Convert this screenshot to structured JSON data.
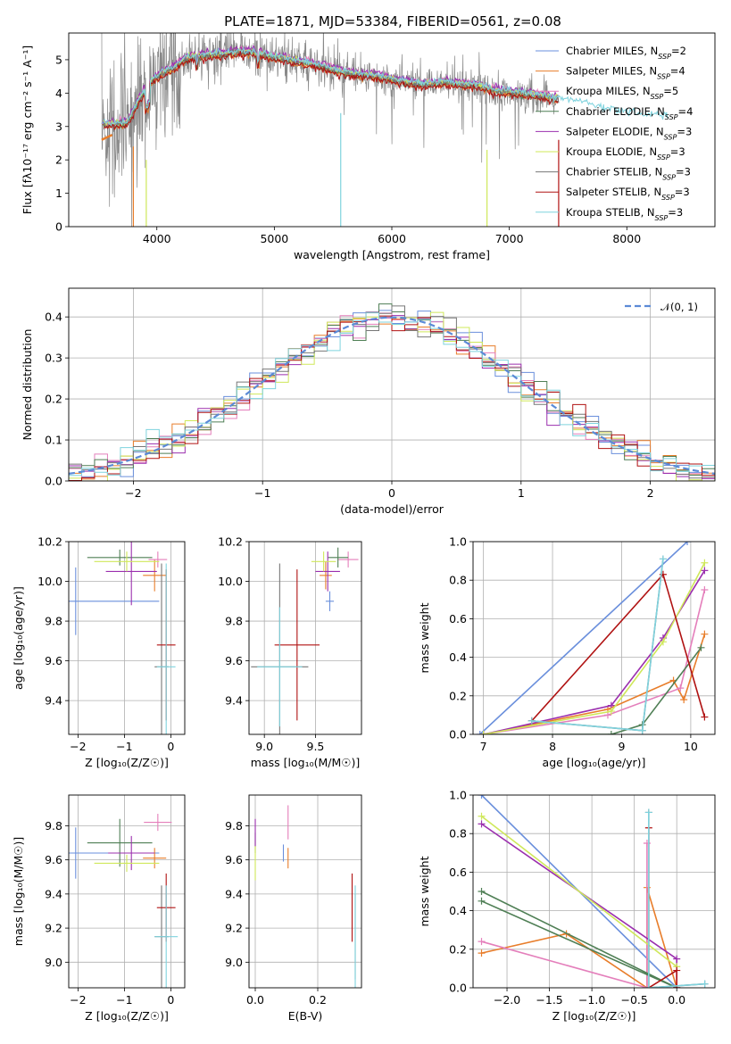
{
  "title": "PLATE=1871, MJD=53384, FIBERID=0561, z=0.08",
  "colors": {
    "chabrier_miles": "#6a8fdc",
    "salpeter_miles": "#e87d2a",
    "kroupa_miles": "#e47fbb",
    "chabrier_elodie": "#4f7f55",
    "salpeter_elodie": "#9b2fae",
    "kroupa_elodie": "#cfe85a",
    "chabrier_stelib": "#777777",
    "salpeter_stelib": "#b01212",
    "kroupa_stelib": "#7fd3de",
    "data": "#888888",
    "grid": "#b0b0b0",
    "gaussian": "#5b8ad6"
  },
  "chart_data": [
    {
      "type": "line",
      "id": "spectrum",
      "title": "PLATE=1871, MJD=53384, FIBERID=0561, z=0.08",
      "xlabel": "wavelength [Angstrom, rest frame]",
      "ylabel": "Flux [fλ10⁻¹⁷ erg cm⁻² s⁻¹ A⁻¹]",
      "xlim": [
        3250,
        8750
      ],
      "ylim": [
        0,
        5.8
      ],
      "xticks": [
        4000,
        5000,
        6000,
        7000,
        8000
      ],
      "yticks": [
        0,
        1,
        2,
        3,
        4,
        5
      ],
      "grid": false,
      "legend_loc": "right",
      "series": [
        {
          "name": "Chabrier MILES, N",
          "sub": "SSP",
          "suffix": "=2"
        },
        {
          "name": "Salpeter MILES, N",
          "sub": "SSP",
          "suffix": "=4"
        },
        {
          "name": "Kroupa MILES, N",
          "sub": "SSP",
          "suffix": "=5"
        },
        {
          "name": "Chabrier ELODIE, N",
          "sub": "SSP",
          "suffix": "=4"
        },
        {
          "name": "Salpeter ELODIE, N",
          "sub": "SSP",
          "suffix": "=3"
        },
        {
          "name": "Kroupa ELODIE, N",
          "sub": "SSP",
          "suffix": "=3"
        },
        {
          "name": "Chabrier STELIB, N",
          "sub": "SSP",
          "suffix": "=3"
        },
        {
          "name": "Salpeter STELIB, N",
          "sub": "SSP",
          "suffix": "=3"
        },
        {
          "name": "Kroupa STELIB, N",
          "sub": "SSP",
          "suffix": "=3"
        }
      ],
      "continuum": {
        "wavelength": [
          3550,
          3650,
          3750,
          3850,
          3950,
          4050,
          4150,
          4250,
          4350,
          4500,
          4650,
          4800,
          4950,
          5100,
          5250,
          5400,
          5550,
          5700,
          5850,
          6000,
          6150,
          6300,
          6450,
          6600,
          6750,
          6900,
          7050,
          7200,
          7350,
          7500,
          7650,
          7800,
          7950,
          8100,
          8250,
          8350
        ],
        "flux": [
          3.05,
          3.05,
          3.1,
          3.8,
          4.35,
          4.6,
          4.75,
          5.05,
          5.1,
          5.15,
          5.2,
          5.22,
          5.1,
          5.0,
          4.9,
          4.8,
          4.65,
          4.55,
          4.5,
          4.4,
          4.3,
          4.25,
          4.3,
          4.25,
          4.2,
          4.05,
          4.0,
          3.95,
          3.85,
          3.75,
          3.7,
          3.5,
          3.4,
          3.35,
          3.3,
          3.25
        ]
      }
    },
    {
      "type": "bar",
      "id": "residual-histogram",
      "xlabel": "(data-model)/error",
      "ylabel": "Normed distribution",
      "xlim": [
        -2.5,
        2.5
      ],
      "ylim": [
        0,
        0.47
      ],
      "xticks": [
        -2,
        -1,
        0,
        1,
        2
      ],
      "yticks": [
        0.0,
        0.1,
        0.2,
        0.3,
        0.4
      ],
      "grid": true,
      "legend_loc": "upper right",
      "gaussian_label": "𝒩(0, 1)",
      "bin_width": 0.1
    },
    {
      "type": "scatter",
      "id": "age-vs-Z",
      "xlabel": "Z [log₁₀(Z/Z☉)]",
      "ylabel": "age  [log₁₀(age/yr)]",
      "xlim": [
        -2.2,
        0.3
      ],
      "ylim": [
        9.23,
        10.2
      ],
      "xticks": [
        -2,
        -1,
        0
      ],
      "yticks": [
        9.4,
        9.6,
        9.8,
        10.0,
        10.2
      ],
      "grid": true,
      "points": [
        {
          "series": 0,
          "x": -2.05,
          "xerr": 1.8,
          "y": 9.9,
          "yerr": 0.17
        },
        {
          "series": 1,
          "x": -0.35,
          "xerr": 0.25,
          "y": 10.03,
          "yerr": 0.08
        },
        {
          "series": 2,
          "x": -0.28,
          "xerr": 0.2,
          "y": 10.11,
          "yerr": 0.04
        },
        {
          "series": 3,
          "x": -1.1,
          "xerr": 0.7,
          "y": 10.12,
          "yerr": 0.04
        },
        {
          "series": 4,
          "x": -0.85,
          "xerr": 0.55,
          "y": 10.05,
          "yerr": 0.17
        },
        {
          "series": 5,
          "x": -0.95,
          "xerr": 0.7,
          "y": 10.1,
          "yerr": 0.05
        },
        {
          "series": 6,
          "x": -0.2,
          "xerr": 0.15,
          "y": 9.57,
          "yerr": 0.52
        },
        {
          "series": 7,
          "x": -0.1,
          "xerr": 0.2,
          "y": 9.68,
          "yerr": 0.38
        },
        {
          "series": 8,
          "x": -0.1,
          "xerr": 0.2,
          "y": 9.57,
          "yerr": 0.52
        }
      ]
    },
    {
      "type": "scatter",
      "id": "age-vs-mass",
      "xlabel": "mass [log₁₀(M/M☉)]",
      "ylabel": "",
      "xlim": [
        8.85,
        9.95
      ],
      "ylim": [
        9.23,
        10.2
      ],
      "xticks": [
        9.0,
        9.5
      ],
      "yticks": [
        9.4,
        9.6,
        9.8,
        10.0,
        10.2
      ],
      "grid": true,
      "points": [
        {
          "series": 0,
          "x": 9.64,
          "xerr": 0.04,
          "y": 9.9,
          "yerr": 0.05
        },
        {
          "series": 1,
          "x": 9.6,
          "xerr": 0.06,
          "y": 10.03,
          "yerr": 0.07
        },
        {
          "series": 2,
          "x": 9.82,
          "xerr": 0.1,
          "y": 10.11,
          "yerr": 0.04
        },
        {
          "series": 3,
          "x": 9.72,
          "xerr": 0.1,
          "y": 10.12,
          "yerr": 0.05
        },
        {
          "series": 4,
          "x": 9.62,
          "xerr": 0.12,
          "y": 10.05,
          "yerr": 0.1
        },
        {
          "series": 5,
          "x": 9.58,
          "xerr": 0.12,
          "y": 10.1,
          "yerr": 0.05
        },
        {
          "series": 6,
          "x": 9.15,
          "xerr": 0.28,
          "y": 9.57,
          "yerr": 0.52
        },
        {
          "series": 7,
          "x": 9.32,
          "xerr": 0.22,
          "y": 9.68,
          "yerr": 0.38
        },
        {
          "series": 8,
          "x": 9.15,
          "xerr": 0.22,
          "y": 9.57,
          "yerr": 0.3
        }
      ]
    },
    {
      "type": "line",
      "id": "weight-vs-age",
      "xlabel": "age  [log₁₀(age/yr)]",
      "ylabel": "mass weight",
      "xlim": [
        6.85,
        10.35
      ],
      "ylim": [
        0,
        1
      ],
      "xticks": [
        7,
        8,
        9,
        10
      ],
      "yticks": [
        0.0,
        0.2,
        0.4,
        0.6,
        0.8,
        1.0
      ],
      "grid": true,
      "series": [
        {
          "series": 0,
          "x": [
            6.95,
            9.95
          ],
          "y": [
            0.0,
            1.0
          ]
        },
        {
          "series": 1,
          "x": [
            7.0,
            8.8,
            9.75,
            9.9,
            10.2
          ],
          "y": [
            0.0,
            0.13,
            0.28,
            0.18,
            0.52
          ]
        },
        {
          "series": 2,
          "x": [
            7.0,
            8.8,
            9.85,
            10.2
          ],
          "y": [
            0.0,
            0.1,
            0.24,
            0.75
          ]
        },
        {
          "series": 3,
          "x": [
            7.0,
            8.85,
            9.3,
            10.15
          ],
          "y": [
            0.0,
            0.0,
            0.05,
            0.45
          ]
        },
        {
          "series": 4,
          "x": [
            7.0,
            8.85,
            9.6,
            10.2
          ],
          "y": [
            0.0,
            0.15,
            0.5,
            0.85
          ]
        },
        {
          "series": 5,
          "x": [
            7.0,
            8.85,
            9.6,
            10.2
          ],
          "y": [
            0.0,
            0.12,
            0.48,
            0.89
          ]
        },
        {
          "series": 6,
          "x": [
            7.7,
            9.3,
            9.6
          ],
          "y": [
            0.07,
            0.02,
            0.91
          ]
        },
        {
          "series": 7,
          "x": [
            7.7,
            9.6,
            10.2
          ],
          "y": [
            0.07,
            0.83,
            0.09
          ]
        },
        {
          "series": 8,
          "x": [
            7.7,
            9.3,
            9.6
          ],
          "y": [
            0.07,
            0.02,
            0.91
          ]
        }
      ]
    },
    {
      "type": "scatter",
      "id": "mass-vs-Z",
      "xlabel": "Z [log₁₀(Z/Z☉)]",
      "ylabel": "mass [log₁₀(M/M☉)]",
      "xlim": [
        -2.2,
        0.3
      ],
      "ylim": [
        8.85,
        9.98
      ],
      "xticks": [
        -2,
        -1,
        0
      ],
      "yticks": [
        9.0,
        9.2,
        9.4,
        9.6,
        9.8
      ],
      "grid": true,
      "points": [
        {
          "series": 0,
          "x": -2.05,
          "xerr": 1.8,
          "y": 9.64,
          "yerr": 0.15
        },
        {
          "series": 1,
          "x": -0.35,
          "xerr": 0.25,
          "y": 9.61,
          "yerr": 0.06
        },
        {
          "series": 2,
          "x": -0.28,
          "xerr": 0.3,
          "y": 9.82,
          "yerr": 0.05
        },
        {
          "series": 3,
          "x": -1.1,
          "xerr": 0.7,
          "y": 9.7,
          "yerr": 0.14
        },
        {
          "series": 4,
          "x": -0.85,
          "xerr": 0.5,
          "y": 9.64,
          "yerr": 0.1
        },
        {
          "series": 5,
          "x": -0.95,
          "xerr": 0.7,
          "y": 9.58,
          "yerr": 0.05
        },
        {
          "series": 6,
          "x": -0.2,
          "xerr": 0.15,
          "y": 9.15,
          "yerr": 0.3
        },
        {
          "series": 7,
          "x": -0.1,
          "xerr": 0.2,
          "y": 9.32,
          "yerr": 0.2
        },
        {
          "series": 8,
          "x": -0.1,
          "xerr": 0.25,
          "y": 9.15,
          "yerr": 0.3
        }
      ]
    },
    {
      "type": "scatter",
      "id": "mass-vs-ebv",
      "xlabel": "E(B-V)",
      "ylabel": "",
      "xlim": [
        -0.02,
        0.34
      ],
      "ylim": [
        8.85,
        9.98
      ],
      "xticks": [
        0.0,
        0.2
      ],
      "yticks": [
        9.0,
        9.2,
        9.4,
        9.6,
        9.8
      ],
      "grid": true,
      "points": [
        {
          "series": 0,
          "x": 0.09,
          "xerr": 0.0,
          "y": 9.64,
          "yerr": 0.05
        },
        {
          "series": 1,
          "x": 0.105,
          "xerr": 0.0,
          "y": 9.61,
          "yerr": 0.06
        },
        {
          "series": 2,
          "x": 0.105,
          "xerr": 0.0,
          "y": 9.82,
          "yerr": 0.1
        },
        {
          "series": 3,
          "x": 0.0,
          "xerr": 0.0,
          "y": 9.7,
          "yerr": 0.06
        },
        {
          "series": 4,
          "x": 0.0,
          "xerr": 0.0,
          "y": 9.76,
          "yerr": 0.08
        },
        {
          "series": 5,
          "x": 0.0,
          "xerr": 0.0,
          "y": 9.58,
          "yerr": 0.1
        },
        {
          "series": 6,
          "x": 0.32,
          "xerr": 0.0,
          "y": 9.15,
          "yerr": 0.25
        },
        {
          "series": 7,
          "x": 0.31,
          "xerr": 0.0,
          "y": 9.32,
          "yerr": 0.2
        },
        {
          "series": 8,
          "x": 0.32,
          "xerr": 0.0,
          "y": 9.15,
          "yerr": 0.3
        }
      ]
    },
    {
      "type": "line",
      "id": "weight-vs-Z",
      "xlabel": "Z [log₁₀(Z/Z☉)]",
      "ylabel": "mass weight",
      "xlim": [
        -2.4,
        0.45
      ],
      "ylim": [
        0,
        1
      ],
      "xticks": [
        -2.0,
        -1.5,
        -1.0,
        -0.5,
        0.0
      ],
      "yticks": [
        0.0,
        0.2,
        0.4,
        0.6,
        0.8,
        1.0
      ],
      "grid": true,
      "series": [
        {
          "series": 0,
          "x": [
            -2.3,
            0.0
          ],
          "y": [
            1.0,
            0.0
          ]
        },
        {
          "series": 1,
          "x": [
            -2.3,
            -1.3,
            -0.35,
            -0.35,
            0.0
          ],
          "y": [
            0.18,
            0.28,
            0.0,
            0.52,
            0.0
          ]
        },
        {
          "series": 2,
          "x": [
            -2.3,
            -0.35,
            -0.35
          ],
          "y": [
            0.24,
            0.0,
            0.75
          ]
        },
        {
          "series": 3,
          "x": [
            -2.3,
            0.0,
            -2.3
          ],
          "y": [
            0.5,
            0.0,
            0.45
          ]
        },
        {
          "series": 4,
          "x": [
            -2.3,
            0.0,
            0.0
          ],
          "y": [
            0.85,
            0.15,
            0.0
          ]
        },
        {
          "series": 5,
          "x": [
            -2.3,
            0.0
          ],
          "y": [
            0.89,
            0.11
          ]
        },
        {
          "series": 6,
          "x": [
            -0.33,
            -0.33,
            0.33
          ],
          "y": [
            0.91,
            0.0,
            0.02
          ]
        },
        {
          "series": 7,
          "x": [
            -0.33,
            -0.33,
            0.0,
            0.0
          ],
          "y": [
            0.83,
            0.0,
            0.09,
            0.0
          ]
        },
        {
          "series": 8,
          "x": [
            -0.33,
            -0.33,
            0.33
          ],
          "y": [
            0.91,
            0.0,
            0.02
          ]
        }
      ]
    }
  ]
}
